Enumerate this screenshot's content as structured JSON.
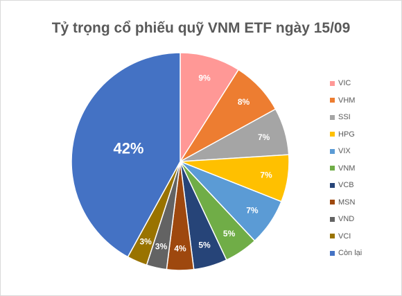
{
  "chart_data": {
    "type": "pie",
    "title": "Tỷ trọng cổ phiếu quỹ VNM ETF ngày 15/09",
    "categories": [
      "VIC",
      "VHM",
      "SSI",
      "HPG",
      "VIX",
      "VNM",
      "VCB",
      "MSN",
      "VND",
      "VCI",
      "Còn lại"
    ],
    "values": [
      9,
      8,
      7,
      7,
      7,
      5,
      5,
      4,
      3,
      3,
      42
    ],
    "value_labels": [
      "9%",
      "8%",
      "7%",
      "7%",
      "7%",
      "5%",
      "5%",
      "4%",
      "3%",
      "3%",
      "42%"
    ],
    "colors": [
      "#ff9896",
      "#ed7d31",
      "#a5a5a5",
      "#ffc000",
      "#5b9bd5",
      "#70ad47",
      "#264478",
      "#9e480e",
      "#636363",
      "#997300",
      "#4472c4"
    ],
    "legend_position": "right",
    "start_angle_deg": 0,
    "direction": "clockwise"
  }
}
